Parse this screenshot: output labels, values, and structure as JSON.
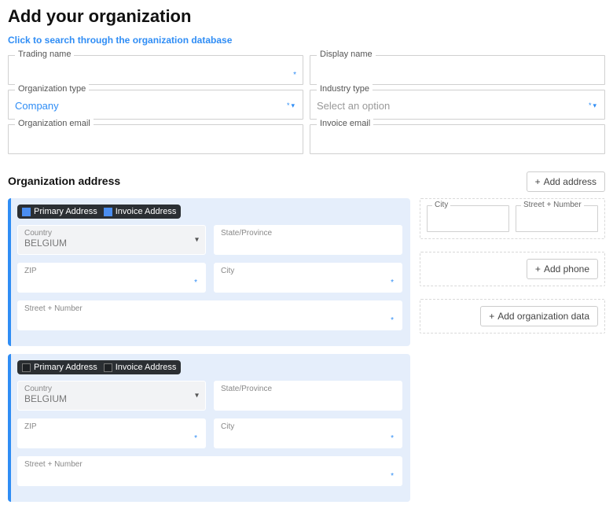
{
  "page": {
    "title": "Add your organization",
    "search_link": "Click to search through the organization database"
  },
  "fields": {
    "trading_name": {
      "label": "Trading name",
      "value": ""
    },
    "display_name": {
      "label": "Display name",
      "value": ""
    },
    "org_type": {
      "label": "Organization type",
      "value": "Company"
    },
    "industry_type": {
      "label": "Industry type",
      "placeholder": "Select an option",
      "value": ""
    },
    "org_email": {
      "label": "Organization email",
      "value": ""
    },
    "invoice_email": {
      "label": "Invoice email",
      "value": ""
    }
  },
  "address_section": {
    "heading": "Organization address",
    "add_address_btn": "Add address",
    "add_phone_btn": "Add phone",
    "add_org_data_btn": "Add organization data"
  },
  "addr_tabs": {
    "primary": "Primary Address",
    "invoice": "Invoice Address"
  },
  "addr_fields": {
    "country": "Country",
    "country_value": "BELGIUM",
    "state": "State/Province",
    "zip": "ZIP",
    "city": "City",
    "street": "Street + Number"
  },
  "side_fields": {
    "city": "City",
    "street": "Street + Number"
  },
  "addresses": [
    {
      "primary_checked": true,
      "invoice_checked": true
    },
    {
      "primary_checked": false,
      "invoice_checked": false
    }
  ],
  "colors": {
    "accent": "#2f8df5",
    "panel_bg": "#e5eefb",
    "header_pill": "#2b2f33"
  }
}
